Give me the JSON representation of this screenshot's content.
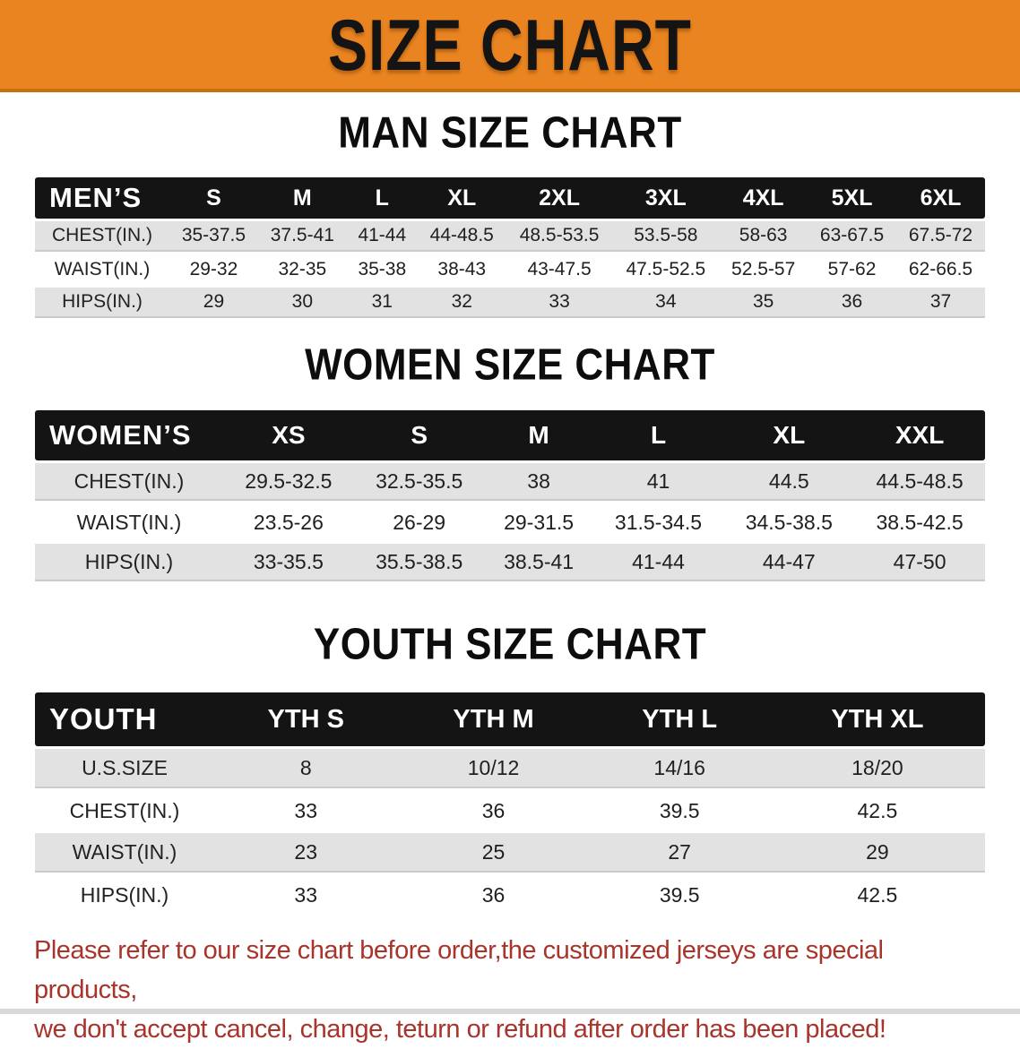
{
  "banner": {
    "title": "SIZE CHART"
  },
  "colors": {
    "banner_bg": "#E98420",
    "banner_edge": "#C9700E",
    "header_bar_bg": "#141414",
    "header_bar_text": "#FFFFFF",
    "row_alt_bg": "#E2E2E2",
    "body_text": "#1F1F1F",
    "disclaimer_text": "#A8342C"
  },
  "sections": [
    {
      "id": "men",
      "title": "MAN SIZE CHART",
      "header_label": "MEN’S",
      "columns": [
        "S",
        "M",
        "L",
        "XL",
        "2XL",
        "3XL",
        "4XL",
        "5XL",
        "6XL"
      ],
      "rows": [
        {
          "label": "CHEST(IN.)",
          "values": [
            "35-37.5",
            "37.5-41",
            "41-44",
            "44-48.5",
            "48.5-53.5",
            "53.5-58",
            "58-63",
            "63-67.5",
            "67.5-72"
          ]
        },
        {
          "label": "WAIST(IN.)",
          "values": [
            "29-32",
            "32-35",
            "35-38",
            "38-43",
            "43-47.5",
            "47.5-52.5",
            "52.5-57",
            "57-62",
            "62-66.5"
          ]
        },
        {
          "label": "HIPS(IN.)",
          "values": [
            "29",
            "30",
            "31",
            "32",
            "33",
            "34",
            "35",
            "36",
            "37"
          ]
        }
      ]
    },
    {
      "id": "women",
      "title": "WOMEN SIZE CHART",
      "header_label": "WOMEN’S",
      "columns": [
        "XS",
        "S",
        "M",
        "L",
        "XL",
        "XXL"
      ],
      "rows": [
        {
          "label": "CHEST(IN.)",
          "values": [
            "29.5-32.5",
            "32.5-35.5",
            "38",
            "41",
            "44.5",
            "44.5-48.5"
          ]
        },
        {
          "label": "WAIST(IN.)",
          "values": [
            "23.5-26",
            "26-29",
            "29-31.5",
            "31.5-34.5",
            "34.5-38.5",
            "38.5-42.5"
          ]
        },
        {
          "label": "HIPS(IN.)",
          "values": [
            "33-35.5",
            "35.5-38.5",
            "38.5-41",
            "41-44",
            "44-47",
            "47-50"
          ]
        }
      ]
    },
    {
      "id": "youth",
      "title": "YOUTH SIZE CHART",
      "header_label": "YOUTH",
      "columns": [
        "YTH S",
        "YTH M",
        "YTH L",
        "YTH XL"
      ],
      "rows": [
        {
          "label": "U.S.SIZE",
          "values": [
            "8",
            "10/12",
            "14/16",
            "18/20"
          ]
        },
        {
          "label": "CHEST(IN.)",
          "values": [
            "33",
            "36",
            "39.5",
            "42.5"
          ]
        },
        {
          "label": "WAIST(IN.)",
          "values": [
            "23",
            "25",
            "27",
            "29"
          ]
        },
        {
          "label": "HIPS(IN.)",
          "values": [
            "33",
            "36",
            "39.5",
            "42.5"
          ]
        }
      ]
    }
  ],
  "disclaimer": {
    "lines": [
      "Please refer to our size chart before order,the customized jerseys are special products,",
      "we don't accept cancel, change, teturn or refund after order has been placed!"
    ]
  }
}
